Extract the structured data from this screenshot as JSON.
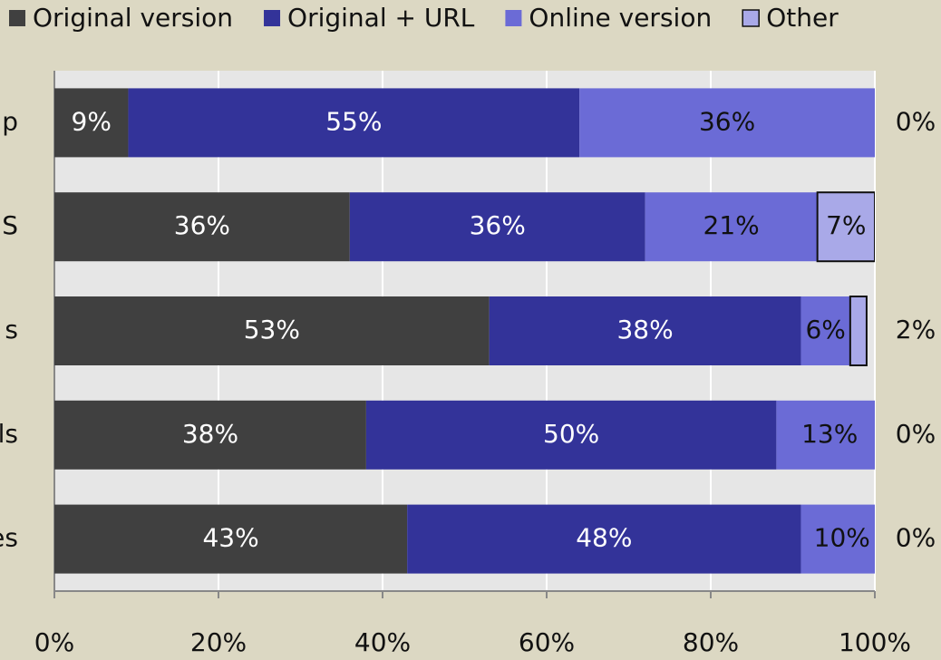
{
  "chart_data": {
    "type": "bar",
    "orientation": "horizontal",
    "stacked": true,
    "categories": [
      "p",
      "S",
      "s",
      "ls",
      "es"
    ],
    "series": [
      {
        "name": "Original version",
        "color": "#404040",
        "values": [
          9,
          36,
          53,
          38,
          43
        ],
        "value_labels": [
          "9%",
          "36%",
          "53%",
          "38%",
          "43%"
        ]
      },
      {
        "name": "Original + URL",
        "color": "#333399",
        "values": [
          55,
          36,
          38,
          50,
          48
        ],
        "value_labels": [
          "55%",
          "36%",
          "38%",
          "50%",
          "48%"
        ]
      },
      {
        "name": "Online version",
        "color": "#6b6bd6",
        "values": [
          36,
          21,
          6,
          13,
          10
        ],
        "value_labels": [
          "36%",
          "21%",
          "6%",
          "13%",
          "10%"
        ]
      },
      {
        "name": "Other",
        "color": "#a9a9e8",
        "values": [
          0,
          7,
          2,
          0,
          0
        ],
        "value_labels": [
          "0%",
          "7%",
          "2%",
          "0%",
          "0%"
        ]
      }
    ],
    "xlim": [
      0,
      100
    ],
    "xticks": [
      {
        "value": 0,
        "label": "0%"
      },
      {
        "value": 20,
        "label": "20%"
      },
      {
        "value": 40,
        "label": "40%"
      },
      {
        "value": 60,
        "label": "60%"
      },
      {
        "value": 80,
        "label": "80%"
      },
      {
        "value": 100,
        "label": "100%"
      }
    ],
    "grid": true,
    "legend": "top"
  }
}
